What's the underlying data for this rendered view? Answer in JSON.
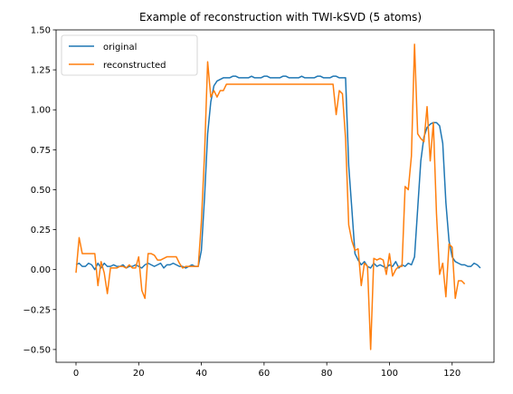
{
  "chart_data": {
    "type": "line",
    "title": "Example of reconstruction with TWI-kSVD (5 atoms)",
    "xlabel": "",
    "ylabel": "",
    "xlim": [
      -6.35,
      133.35
    ],
    "ylim": [
      -0.58,
      1.5
    ],
    "xticks": [
      0,
      20,
      40,
      60,
      80,
      100,
      120
    ],
    "yticks": [
      -0.5,
      -0.25,
      0.0,
      0.25,
      0.5,
      0.75,
      1.0,
      1.25,
      1.5
    ],
    "ytick_labels": [
      "−0.50",
      "−0.25",
      "0.00",
      "0.25",
      "0.50",
      "0.75",
      "1.00",
      "1.25",
      "1.50"
    ],
    "xtick_labels": [
      "0",
      "20",
      "40",
      "60",
      "80",
      "100",
      "120"
    ],
    "grid": false,
    "legend_position": "top-left",
    "series": [
      {
        "name": "original",
        "color": "#1f77b4",
        "values": [
          0.03,
          0.04,
          0.02,
          0.02,
          0.04,
          0.03,
          0.0,
          0.04,
          0.01,
          0.04,
          0.02,
          0.02,
          0.03,
          0.02,
          0.02,
          0.03,
          0.01,
          0.02,
          0.02,
          0.03,
          0.02,
          0.01,
          0.03,
          0.04,
          0.03,
          0.02,
          0.03,
          0.04,
          0.01,
          0.03,
          0.03,
          0.04,
          0.03,
          0.02,
          0.02,
          0.01,
          0.02,
          0.03,
          0.02,
          0.02,
          0.12,
          0.45,
          0.85,
          1.05,
          1.15,
          1.18,
          1.19,
          1.2,
          1.2,
          1.2,
          1.21,
          1.21,
          1.2,
          1.2,
          1.2,
          1.2,
          1.21,
          1.2,
          1.2,
          1.2,
          1.21,
          1.21,
          1.2,
          1.2,
          1.2,
          1.2,
          1.21,
          1.21,
          1.2,
          1.2,
          1.2,
          1.2,
          1.21,
          1.2,
          1.2,
          1.2,
          1.2,
          1.21,
          1.21,
          1.2,
          1.2,
          1.2,
          1.21,
          1.21,
          1.2,
          1.2,
          1.2,
          0.65,
          0.38,
          0.1,
          0.06,
          0.03,
          0.05,
          0.02,
          0.01,
          0.04,
          0.02,
          0.03,
          0.02,
          0.01,
          0.03,
          0.02,
          0.05,
          0.01,
          0.03,
          0.02,
          0.04,
          0.03,
          0.08,
          0.38,
          0.68,
          0.83,
          0.89,
          0.91,
          0.92,
          0.92,
          0.9,
          0.79,
          0.42,
          0.18,
          0.08,
          0.05,
          0.04,
          0.03,
          0.03,
          0.02,
          0.02,
          0.04,
          0.03,
          0.01
        ],
        "x_start": 0
      },
      {
        "name": "reconstructed",
        "color": "#ff7f0e",
        "values": [
          -0.02,
          0.2,
          0.1,
          0.1,
          0.1,
          0.1,
          0.1,
          -0.1,
          0.05,
          -0.02,
          -0.15,
          0.01,
          0.01,
          0.01,
          0.02,
          0.02,
          0.01,
          0.03,
          0.01,
          0.01,
          0.08,
          -0.13,
          -0.18,
          0.1,
          0.1,
          0.09,
          0.06,
          0.06,
          0.07,
          0.08,
          0.08,
          0.08,
          0.08,
          0.04,
          0.01,
          0.02,
          0.02,
          0.02,
          0.02,
          0.02,
          0.3,
          0.72,
          1.3,
          1.08,
          1.12,
          1.08,
          1.12,
          1.12,
          1.16,
          1.16,
          1.16,
          1.16,
          1.16,
          1.16,
          1.16,
          1.16,
          1.16,
          1.16,
          1.16,
          1.16,
          1.16,
          1.16,
          1.16,
          1.16,
          1.16,
          1.16,
          1.16,
          1.16,
          1.16,
          1.16,
          1.16,
          1.16,
          1.16,
          1.16,
          1.16,
          1.16,
          1.16,
          1.16,
          1.16,
          1.16,
          1.16,
          1.16,
          1.16,
          0.97,
          1.12,
          1.1,
          0.82,
          0.28,
          0.18,
          0.12,
          0.13,
          -0.1,
          0.04,
          0.02,
          -0.5,
          0.07,
          0.06,
          0.07,
          0.06,
          -0.03,
          0.1,
          -0.04,
          0.0,
          0.02,
          0.02,
          0.52,
          0.5,
          0.71,
          1.41,
          0.85,
          0.82,
          0.8,
          1.02,
          0.68,
          0.92,
          0.35,
          -0.03,
          0.04,
          -0.17,
          0.16,
          0.14,
          -0.18,
          -0.07,
          -0.07,
          -0.09
        ],
        "x_start": 0
      }
    ]
  }
}
